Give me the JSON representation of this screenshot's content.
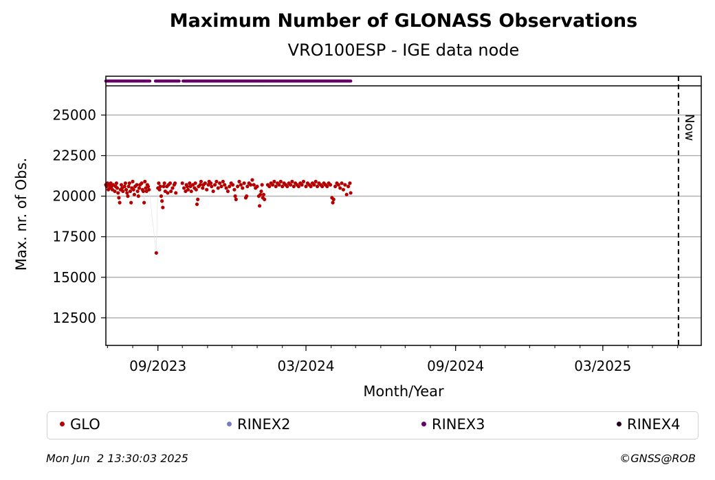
{
  "chart_data": {
    "type": "scatter",
    "title": "Maximum Number of GLONASS Observations",
    "subtitle": "VRO100ESP - IGE data node",
    "xlabel": "Month/Year",
    "ylabel": "Max. nr. of Obs.",
    "x_range": [
      "2023-06-29",
      "2025-06-30"
    ],
    "ylim": [
      10800,
      26800
    ],
    "y_ticks": [
      12500,
      15000,
      17500,
      20000,
      22500,
      25000
    ],
    "x_ticks": [
      {
        "date": "2023-09-01",
        "label": "09/2023"
      },
      {
        "date": "2024-03-01",
        "label": "03/2024"
      },
      {
        "date": "2024-09-01",
        "label": "09/2024"
      },
      {
        "date": "2025-03-01",
        "label": "03/2025"
      }
    ],
    "grid": "horizontal",
    "now_marker": {
      "date": "2025-06-02",
      "label": "Now"
    },
    "series": [
      {
        "name": "GLO",
        "color": "#b40000",
        "points": [
          [
            "2023-06-29",
            20700
          ],
          [
            "2023-06-30",
            20600
          ],
          [
            "2023-07-01",
            20800
          ],
          [
            "2023-07-02",
            20400
          ],
          [
            "2023-07-03",
            20700
          ],
          [
            "2023-07-04",
            20500
          ],
          [
            "2023-07-05",
            20800
          ],
          [
            "2023-07-06",
            20600
          ],
          [
            "2023-07-07",
            20400
          ],
          [
            "2023-07-08",
            20700
          ],
          [
            "2023-07-10",
            20300
          ],
          [
            "2023-07-11",
            20600
          ],
          [
            "2023-07-12",
            20800
          ],
          [
            "2023-07-13",
            20500
          ],
          [
            "2023-07-14",
            20200
          ],
          [
            "2023-07-15",
            19900
          ],
          [
            "2023-07-16",
            19600
          ],
          [
            "2023-07-17",
            20400
          ],
          [
            "2023-07-18",
            20700
          ],
          [
            "2023-07-19",
            20500
          ],
          [
            "2023-07-20",
            20300
          ],
          [
            "2023-07-22",
            20600
          ],
          [
            "2023-07-23",
            20800
          ],
          [
            "2023-07-24",
            20400
          ],
          [
            "2023-07-25",
            20200
          ],
          [
            "2023-07-26",
            20000
          ],
          [
            "2023-07-27",
            20600
          ],
          [
            "2023-07-28",
            20800
          ],
          [
            "2023-07-29",
            20300
          ],
          [
            "2023-07-30",
            19600
          ],
          [
            "2023-07-31",
            20500
          ],
          [
            "2023-08-01",
            20900
          ],
          [
            "2023-08-02",
            20400
          ],
          [
            "2023-08-03",
            20100
          ],
          [
            "2023-08-04",
            20600
          ],
          [
            "2023-08-06",
            20700
          ],
          [
            "2023-08-07",
            20300
          ],
          [
            "2023-08-08",
            20000
          ],
          [
            "2023-08-09",
            20500
          ],
          [
            "2023-08-10",
            20700
          ],
          [
            "2023-08-12",
            20800
          ],
          [
            "2023-08-13",
            20400
          ],
          [
            "2023-08-14",
            20300
          ],
          [
            "2023-08-15",
            19600
          ],
          [
            "2023-08-16",
            20900
          ],
          [
            "2023-08-17",
            20500
          ],
          [
            "2023-08-18",
            20300
          ],
          [
            "2023-08-19",
            20700
          ],
          [
            "2023-08-20",
            20600
          ],
          [
            "2023-08-21",
            20400
          ],
          [
            "2023-08-30",
            16500
          ],
          [
            "2023-09-01",
            20500
          ],
          [
            "2023-09-02",
            20800
          ],
          [
            "2023-09-03",
            20400
          ],
          [
            "2023-09-04",
            20600
          ],
          [
            "2023-09-05",
            20000
          ],
          [
            "2023-09-06",
            19700
          ],
          [
            "2023-09-07",
            19300
          ],
          [
            "2023-09-08",
            20600
          ],
          [
            "2023-09-09",
            20800
          ],
          [
            "2023-09-10",
            20300
          ],
          [
            "2023-09-12",
            20600
          ],
          [
            "2023-09-13",
            20200
          ],
          [
            "2023-09-14",
            20700
          ],
          [
            "2023-09-16",
            20800
          ],
          [
            "2023-09-17",
            20300
          ],
          [
            "2023-09-19",
            20500
          ],
          [
            "2023-09-21",
            20700
          ],
          [
            "2023-09-22",
            20800
          ],
          [
            "2023-09-23",
            20200
          ],
          [
            "2023-10-01",
            20800
          ],
          [
            "2023-10-03",
            20500
          ],
          [
            "2023-10-05",
            20300
          ],
          [
            "2023-10-06",
            20700
          ],
          [
            "2023-10-07",
            20600
          ],
          [
            "2023-10-08",
            20400
          ],
          [
            "2023-10-10",
            20800
          ],
          [
            "2023-10-11",
            20600
          ],
          [
            "2023-10-12",
            20300
          ],
          [
            "2023-10-14",
            20700
          ],
          [
            "2023-10-16",
            20500
          ],
          [
            "2023-10-17",
            20800
          ],
          [
            "2023-10-18",
            20400
          ],
          [
            "2023-10-19",
            19500
          ],
          [
            "2023-10-20",
            19800
          ],
          [
            "2023-10-21",
            20600
          ],
          [
            "2023-10-23",
            20700
          ],
          [
            "2023-10-24",
            20900
          ],
          [
            "2023-10-26",
            20500
          ],
          [
            "2023-10-27",
            20700
          ],
          [
            "2023-10-29",
            20800
          ],
          [
            "2023-10-31",
            20400
          ],
          [
            "2023-11-02",
            20700
          ],
          [
            "2023-11-03",
            20900
          ],
          [
            "2023-11-05",
            20800
          ],
          [
            "2023-11-06",
            20600
          ],
          [
            "2023-11-08",
            20300
          ],
          [
            "2023-11-10",
            20700
          ],
          [
            "2023-11-12",
            20900
          ],
          [
            "2023-11-14",
            20500
          ],
          [
            "2023-11-16",
            20800
          ],
          [
            "2023-11-18",
            20600
          ],
          [
            "2023-11-20",
            20900
          ],
          [
            "2023-11-22",
            20700
          ],
          [
            "2023-11-24",
            20500
          ],
          [
            "2023-11-26",
            20300
          ],
          [
            "2023-11-28",
            20600
          ],
          [
            "2023-11-30",
            20800
          ],
          [
            "2023-12-02",
            20700
          ],
          [
            "2023-12-04",
            20400
          ],
          [
            "2023-12-05",
            20000
          ],
          [
            "2023-12-06",
            19800
          ],
          [
            "2023-12-08",
            20600
          ],
          [
            "2023-12-10",
            20900
          ],
          [
            "2023-12-12",
            20700
          ],
          [
            "2023-12-14",
            20500
          ],
          [
            "2023-12-16",
            20800
          ],
          [
            "2023-12-18",
            19900
          ],
          [
            "2023-12-19",
            20000
          ],
          [
            "2023-12-20",
            20600
          ],
          [
            "2023-12-22",
            20800
          ],
          [
            "2023-12-24",
            20700
          ],
          [
            "2023-12-26",
            21000
          ],
          [
            "2023-12-28",
            20700
          ],
          [
            "2023-12-30",
            20500
          ],
          [
            "2024-01-01",
            20600
          ],
          [
            "2024-01-03",
            20000
          ],
          [
            "2024-01-04",
            19400
          ],
          [
            "2024-01-05",
            20100
          ],
          [
            "2024-01-06",
            20300
          ],
          [
            "2024-01-07",
            20700
          ],
          [
            "2024-01-08",
            19900
          ],
          [
            "2024-01-09",
            20100
          ],
          [
            "2024-01-10",
            19800
          ],
          [
            "2024-01-14",
            20700
          ],
          [
            "2024-01-16",
            20600
          ],
          [
            "2024-01-18",
            20800
          ],
          [
            "2024-01-20",
            20700
          ],
          [
            "2024-01-22",
            20900
          ],
          [
            "2024-01-24",
            20600
          ],
          [
            "2024-01-26",
            20800
          ],
          [
            "2024-01-28",
            20700
          ],
          [
            "2024-01-30",
            20900
          ],
          [
            "2024-02-01",
            20600
          ],
          [
            "2024-02-03",
            20800
          ],
          [
            "2024-02-05",
            20700
          ],
          [
            "2024-02-07",
            20600
          ],
          [
            "2024-02-09",
            20800
          ],
          [
            "2024-02-11",
            20700
          ],
          [
            "2024-02-13",
            20900
          ],
          [
            "2024-02-15",
            20600
          ],
          [
            "2024-02-17",
            20800
          ],
          [
            "2024-02-19",
            20700
          ],
          [
            "2024-02-21",
            20600
          ],
          [
            "2024-02-23",
            20800
          ],
          [
            "2024-02-25",
            20700
          ],
          [
            "2024-02-27",
            20900
          ],
          [
            "2024-03-01",
            20600
          ],
          [
            "2024-03-03",
            20800
          ],
          [
            "2024-03-05",
            20700
          ],
          [
            "2024-03-07",
            20600
          ],
          [
            "2024-03-09",
            20800
          ],
          [
            "2024-03-11",
            20700
          ],
          [
            "2024-03-13",
            20900
          ],
          [
            "2024-03-15",
            20600
          ],
          [
            "2024-03-17",
            20800
          ],
          [
            "2024-03-19",
            20700
          ],
          [
            "2024-03-21",
            20600
          ],
          [
            "2024-03-23",
            20800
          ],
          [
            "2024-03-25",
            20700
          ],
          [
            "2024-03-27",
            20600
          ],
          [
            "2024-03-29",
            20800
          ],
          [
            "2024-03-31",
            20700
          ],
          [
            "2024-04-02",
            19900
          ],
          [
            "2024-04-03",
            19600
          ],
          [
            "2024-04-04",
            19800
          ],
          [
            "2024-04-06",
            20600
          ],
          [
            "2024-04-08",
            20800
          ],
          [
            "2024-04-10",
            20700
          ],
          [
            "2024-04-12",
            20500
          ],
          [
            "2024-04-14",
            20800
          ],
          [
            "2024-04-16",
            20400
          ],
          [
            "2024-04-18",
            20700
          ],
          [
            "2024-04-20",
            20100
          ],
          [
            "2024-04-22",
            20600
          ],
          [
            "2024-04-24",
            20800
          ],
          [
            "2024-04-25",
            20200
          ]
        ]
      },
      {
        "name": "RINEX2",
        "color": "#7b7bbf",
        "points": []
      },
      {
        "name": "RINEX3",
        "color": "#660066",
        "ranges": [
          [
            "2023-06-29",
            "2023-08-22"
          ],
          [
            "2023-08-29",
            "2023-09-27"
          ],
          [
            "2023-10-02",
            "2024-04-25"
          ]
        ]
      },
      {
        "name": "RINEX4",
        "color": "#220022",
        "points": []
      }
    ]
  },
  "footer": {
    "timestamp": "Mon Jun  2 13:30:03 2025",
    "credit": "©GNSS@ROB"
  }
}
